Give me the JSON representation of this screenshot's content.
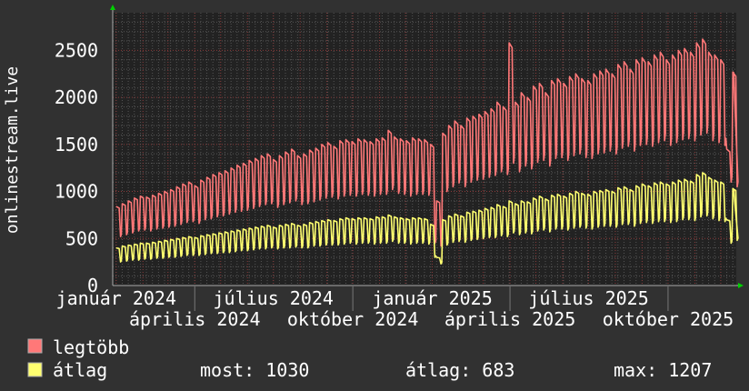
{
  "chart_data": {
    "type": "line",
    "ylabel": "onlinestream.live",
    "xlabel": "",
    "ylim": [
      0,
      2900
    ],
    "y_ticks": [
      "0",
      "500",
      "1000",
      "1500",
      "2000",
      "2500"
    ],
    "y_tick_values": [
      0,
      500,
      1000,
      1500,
      2000,
      2500
    ],
    "x_ticks": [
      {
        "date": "2024-01-01",
        "label": "január 2024"
      },
      {
        "date": "2024-04-01",
        "label": "április 2024"
      },
      {
        "date": "2024-07-01",
        "label": "július 2024"
      },
      {
        "date": "2024-10-01",
        "label": "október 2024"
      },
      {
        "date": "2025-01-01",
        "label": "január 2025"
      },
      {
        "date": "2025-04-01",
        "label": "április 2025"
      },
      {
        "date": "2025-07-01",
        "label": "július 2025"
      },
      {
        "date": "2025-10-01",
        "label": "október 2025"
      }
    ],
    "xlim": [
      "2023-12-28",
      "2025-12-19"
    ],
    "grid": true,
    "legend_placement": "bottom-left",
    "x_weeks": [
      "2024-01-01",
      "2024-01-08",
      "2024-01-15",
      "2024-01-22",
      "2024-01-29",
      "2024-02-05",
      "2024-02-12",
      "2024-02-19",
      "2024-02-26",
      "2024-03-04",
      "2024-03-11",
      "2024-03-18",
      "2024-03-25",
      "2024-04-01",
      "2024-04-08",
      "2024-04-15",
      "2024-04-22",
      "2024-04-29",
      "2024-05-06",
      "2024-05-13",
      "2024-05-20",
      "2024-05-27",
      "2024-06-03",
      "2024-06-10",
      "2024-06-17",
      "2024-06-24",
      "2024-07-01",
      "2024-07-08",
      "2024-07-15",
      "2024-07-22",
      "2024-07-29",
      "2024-08-05",
      "2024-08-12",
      "2024-08-19",
      "2024-08-26",
      "2024-09-02",
      "2024-09-09",
      "2024-09-16",
      "2024-09-23",
      "2024-09-30",
      "2024-10-07",
      "2024-10-14",
      "2024-10-21",
      "2024-10-28",
      "2024-11-04",
      "2024-11-11",
      "2024-11-18",
      "2024-11-25",
      "2024-12-02",
      "2024-12-09",
      "2024-12-16",
      "2024-12-23",
      "2024-12-30",
      "2025-01-06",
      "2025-01-13",
      "2025-01-20",
      "2025-01-27",
      "2025-02-03",
      "2025-02-10",
      "2025-02-17",
      "2025-02-24",
      "2025-03-03",
      "2025-03-10",
      "2025-03-17",
      "2025-03-24",
      "2025-03-31",
      "2025-04-07",
      "2025-04-14",
      "2025-04-21",
      "2025-04-28",
      "2025-05-05",
      "2025-05-12",
      "2025-05-19",
      "2025-05-26",
      "2025-06-02",
      "2025-06-09",
      "2025-06-16",
      "2025-06-23",
      "2025-06-30",
      "2025-07-07",
      "2025-07-14",
      "2025-07-21",
      "2025-07-28",
      "2025-08-04",
      "2025-08-11",
      "2025-08-18",
      "2025-08-25",
      "2025-09-01",
      "2025-09-08",
      "2025-09-15",
      "2025-09-22",
      "2025-09-29",
      "2025-10-06",
      "2025-10-13",
      "2025-10-20",
      "2025-10-27",
      "2025-11-03",
      "2025-11-10",
      "2025-11-17",
      "2025-11-24",
      "2025-12-01",
      "2025-12-08",
      "2025-12-15"
    ],
    "series": [
      {
        "name": "legtöbb",
        "color": "#ff7878",
        "weekly_peak": [
          840,
          870,
          900,
          930,
          950,
          940,
          960,
          980,
          1000,
          1020,
          1050,
          1080,
          1100,
          1060,
          1120,
          1150,
          1180,
          1200,
          1220,
          1250,
          1280,
          1300,
          1330,
          1350,
          1380,
          1400,
          1340,
          1380,
          1420,
          1450,
          1380,
          1400,
          1440,
          1460,
          1500,
          1520,
          1480,
          1540,
          1550,
          1530,
          1560,
          1550,
          1530,
          1560,
          1570,
          1650,
          1580,
          1560,
          1540,
          1570,
          1560,
          1550,
          1500,
          900,
          1620,
          1700,
          1750,
          1700,
          1780,
          1800,
          1820,
          1850,
          1880,
          1950,
          1900,
          2580,
          1950,
          2050,
          2000,
          2120,
          2150,
          2050,
          2180,
          2200,
          2150,
          2220,
          2250,
          2200,
          2180,
          2250,
          2280,
          2300,
          2250,
          2350,
          2380,
          2300,
          2400,
          2420,
          2380,
          2450,
          2480,
          2400,
          2450,
          2500,
          2520,
          2480,
          2580,
          2620,
          2480,
          2450,
          2400,
          1450,
          2270
        ],
        "weekly_low": [
          520,
          540,
          560,
          580,
          590,
          580,
          600,
          610,
          620,
          630,
          650,
          670,
          680,
          660,
          700,
          710,
          730,
          740,
          760,
          780,
          790,
          800,
          820,
          840,
          860,
          870,
          830,
          860,
          880,
          900,
          860,
          870,
          890,
          910,
          930,
          940,
          920,
          950,
          960,
          950,
          970,
          960,
          950,
          970,
          970,
          1020,
          980,
          970,
          950,
          970,
          970,
          960,
          450,
          420,
          1000,
          1050,
          1090,
          1050,
          1100,
          1120,
          1130,
          1150,
          1170,
          1210,
          1180,
          1300,
          1210,
          1270,
          1240,
          1310,
          1330,
          1270,
          1350,
          1360,
          1330,
          1380,
          1400,
          1360,
          1350,
          1400,
          1410,
          1430,
          1400,
          1460,
          1480,
          1430,
          1490,
          1500,
          1480,
          1520,
          1540,
          1490,
          1520,
          1550,
          1560,
          1540,
          1600,
          1620,
          1540,
          1520,
          1490,
          1100,
          1050
        ]
      },
      {
        "name": "átlag",
        "color": "#ffff70",
        "weekly_peak": [
          400,
          420,
          430,
          440,
          450,
          450,
          460,
          470,
          480,
          490,
          500,
          510,
          520,
          510,
          530,
          540,
          550,
          560,
          570,
          580,
          590,
          600,
          610,
          620,
          630,
          640,
          620,
          640,
          650,
          660,
          640,
          650,
          670,
          680,
          690,
          700,
          690,
          710,
          720,
          710,
          720,
          720,
          710,
          730,
          730,
          750,
          730,
          720,
          710,
          720,
          720,
          710,
          650,
          300,
          700,
          740,
          760,
          740,
          780,
          790,
          800,
          820,
          830,
          860,
          840,
          900,
          870,
          900,
          890,
          930,
          950,
          920,
          960,
          970,
          950,
          980,
          1000,
          980,
          970,
          1000,
          1010,
          1020,
          1000,
          1040,
          1050,
          1020,
          1060,
          1080,
          1060,
          1090,
          1100,
          1080,
          1100,
          1120,
          1130,
          1110,
          1180,
          1200,
          1150,
          1120,
          1100,
          700,
          1030
        ],
        "weekly_low": [
          250,
          260,
          270,
          270,
          280,
          280,
          290,
          290,
          300,
          300,
          310,
          320,
          320,
          320,
          330,
          340,
          340,
          350,
          350,
          360,
          370,
          370,
          380,
          390,
          390,
          400,
          390,
          400,
          400,
          410,
          400,
          400,
          420,
          420,
          430,
          430,
          430,
          440,
          450,
          440,
          450,
          450,
          440,
          450,
          450,
          470,
          450,
          450,
          440,
          450,
          450,
          440,
          300,
          230,
          430,
          460,
          470,
          460,
          480,
          490,
          500,
          510,
          510,
          530,
          520,
          560,
          540,
          560,
          550,
          580,
          590,
          570,
          600,
          600,
          590,
          610,
          620,
          610,
          600,
          620,
          630,
          630,
          620,
          650,
          650,
          630,
          660,
          670,
          660,
          680,
          680,
          670,
          680,
          700,
          700,
          690,
          730,
          740,
          710,
          690,
          680,
          450,
          480
        ]
      }
    ]
  },
  "legend": {
    "items": [
      {
        "label": "legtöbb",
        "color": "#ff7878"
      },
      {
        "label": "átlag",
        "color": "#ffff70"
      }
    ],
    "stats": {
      "most": "most: 1030",
      "atlag": "átlag: 683",
      "max": "max: 1207"
    }
  },
  "colors": {
    "background": "#313131",
    "plot_background": "#222222",
    "grid_minor": "#555555",
    "grid_major": "#8a3a3a",
    "axis_arrow": "#00d000"
  }
}
